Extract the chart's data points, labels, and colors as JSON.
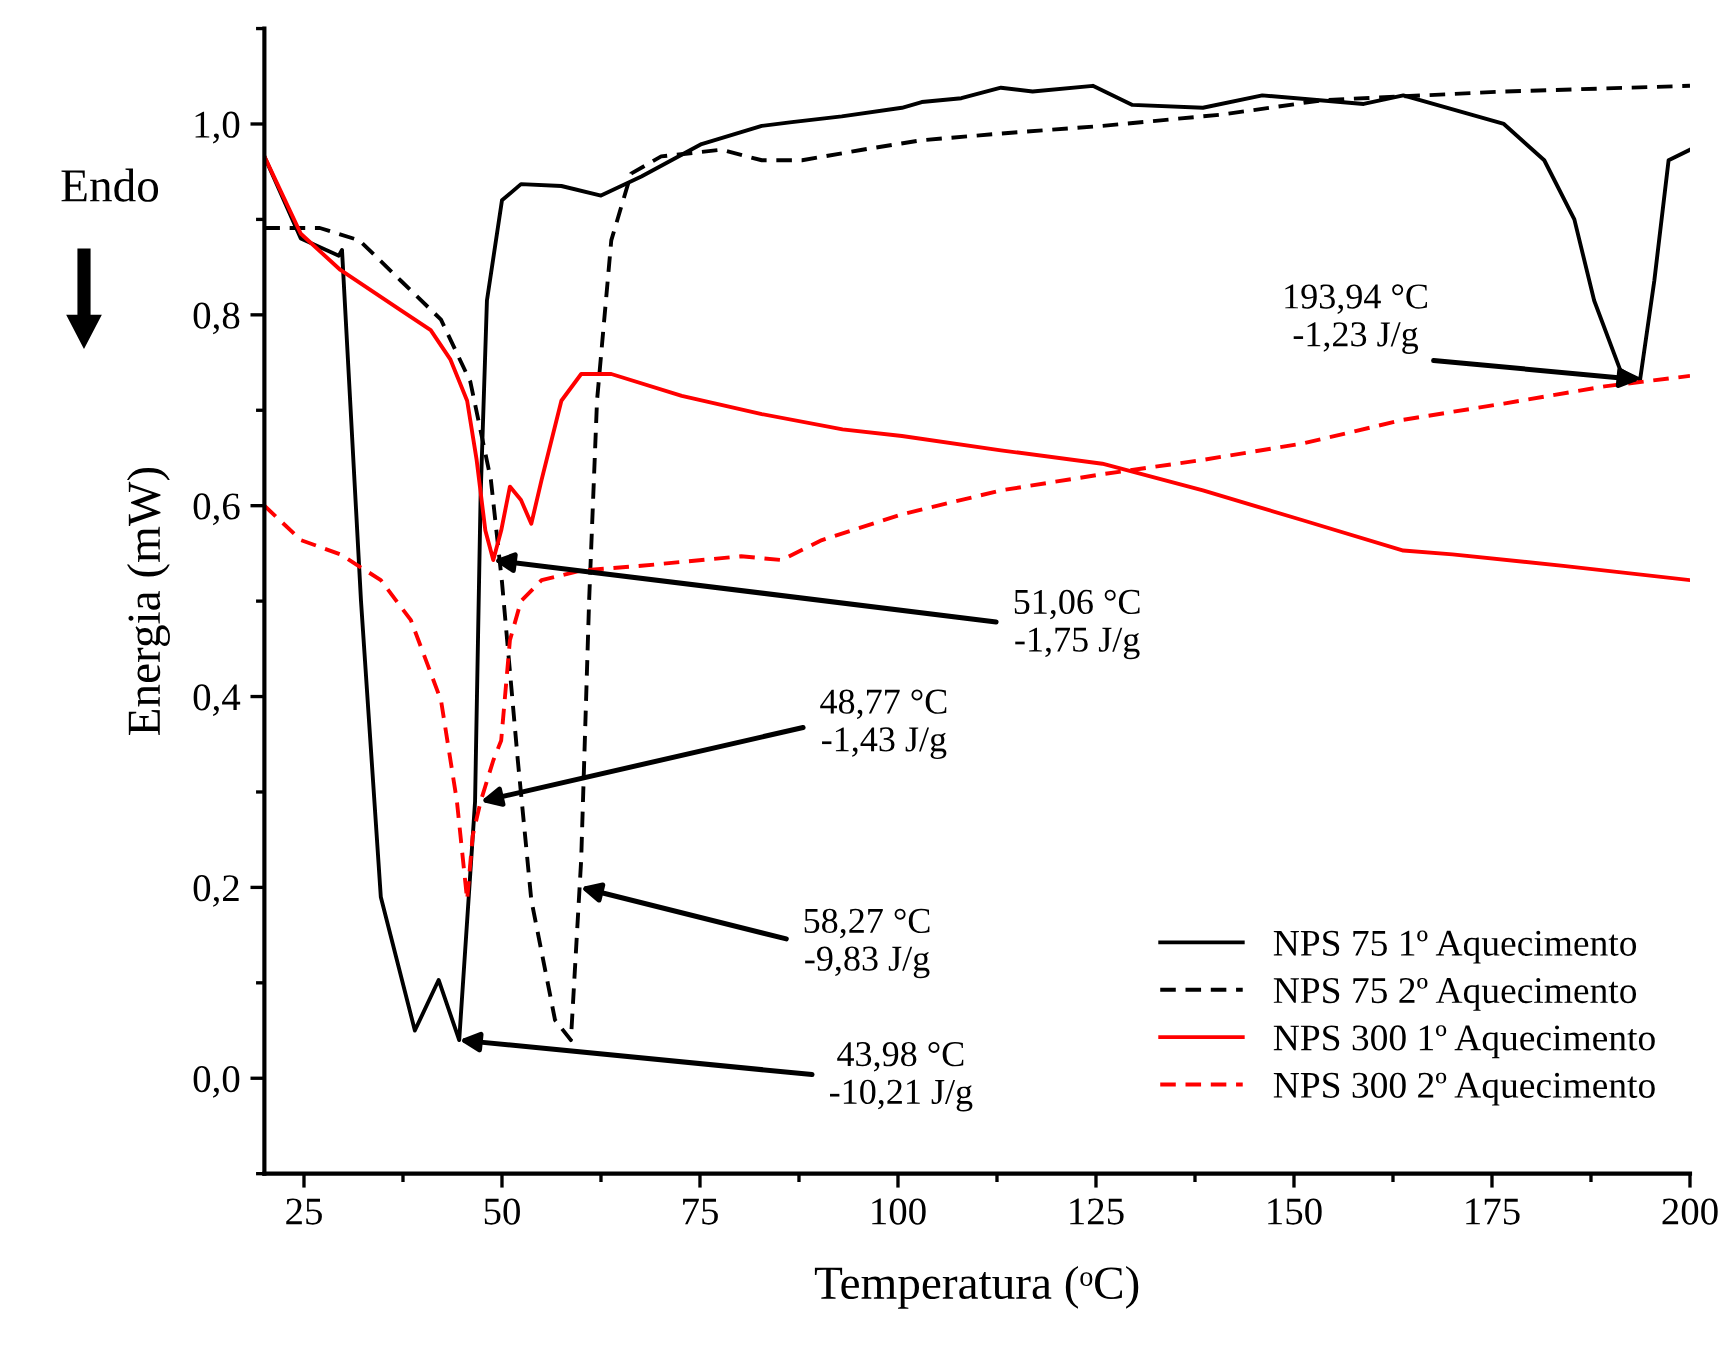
{
  "chart_data": {
    "type": "line",
    "xlabel": "Temperatura (ᵒC)",
    "ylabel": "Energia (mW)",
    "xlim": [
      20,
      200
    ],
    "xticks": [
      25,
      50,
      75,
      100,
      125,
      150,
      175,
      200
    ],
    "ylim": [
      -0.1,
      1.1
    ],
    "yticks": [
      {
        "value": 0,
        "label": "0,0"
      },
      {
        "value": 0.2,
        "label": "0,2"
      },
      {
        "value": 0.4,
        "label": "0,4"
      },
      {
        "value": 0.6,
        "label": "0,6"
      },
      {
        "value": 0.8,
        "label": "0,8"
      },
      {
        "value": 1.0,
        "label": "1,0"
      }
    ],
    "grid": false,
    "legend": "bottom right",
    "marker": "none",
    "series": [
      {
        "name": "NPS 75 1º Aquecimento",
        "color": "#000000",
        "line_style": "solid",
        "x": [
          20,
          24.6,
          29.4,
          29.8,
          32.2,
          34.7,
          39,
          42,
          44.6,
          46.6,
          47.3,
          48.1,
          50,
          52.4,
          57.5,
          62.5,
          67.6,
          75.2,
          82.8,
          86.6,
          92.9,
          100.5,
          103,
          108,
          113,
          117,
          124.6,
          129.6,
          138.5,
          146,
          158.8,
          163.8,
          176.5,
          181.6,
          185.4,
          187.9,
          191.2,
          193.7,
          195.5,
          197.3,
          200
        ],
        "values": [
          0.966,
          0.88,
          0.862,
          0.868,
          0.5,
          0.19,
          0.05,
          0.103,
          0.04,
          0.29,
          0.61,
          0.815,
          0.92,
          0.937,
          0.935,
          0.925,
          0.945,
          0.979,
          0.998,
          1.002,
          1.008,
          1.017,
          1.023,
          1.027,
          1.038,
          1.034,
          1.04,
          1.02,
          1.017,
          1.03,
          1.021,
          1.03,
          1.0,
          0.962,
          0.9,
          0.815,
          0.742,
          0.732,
          0.836,
          0.962,
          0.973
        ]
      },
      {
        "name": "NPS 75 2º Aquecimento",
        "color": "#000000",
        "line_style": "dashed",
        "x": [
          20,
          27,
          32,
          37.2,
          42.3,
          46,
          48.6,
          50,
          52,
          53.7,
          56.7,
          58.7,
          60,
          61,
          62,
          63.8,
          66.3,
          70.1,
          77.7,
          82.8,
          87.9,
          95.5,
          103,
          113,
          125.8,
          141,
          153.7,
          176.5,
          200
        ],
        "values": [
          0.891,
          0.891,
          0.878,
          0.836,
          0.795,
          0.73,
          0.627,
          0.52,
          0.333,
          0.187,
          0.061,
          0.04,
          0.229,
          0.5,
          0.71,
          0.878,
          0.948,
          0.966,
          0.973,
          0.962,
          0.962,
          0.973,
          0.983,
          0.99,
          0.998,
          1.01,
          1.025,
          1.034,
          1.04
        ]
      },
      {
        "name": "NPS 300 1º Aquecimento",
        "color": "#ff0000",
        "line_style": "solid",
        "x": [
          20,
          24.6,
          29.6,
          37.2,
          41,
          43.5,
          45.6,
          46.8,
          47.9,
          48.9,
          49.9,
          51,
          52.4,
          53.7,
          55,
          57.5,
          60,
          63.8,
          72.7,
          82.8,
          93,
          100.5,
          113,
          125.8,
          138.5,
          151,
          163.8,
          170,
          184,
          200
        ],
        "values": [
          0.966,
          0.885,
          0.847,
          0.805,
          0.784,
          0.753,
          0.71,
          0.648,
          0.574,
          0.543,
          0.574,
          0.62,
          0.606,
          0.581,
          0.627,
          0.71,
          0.738,
          0.738,
          0.715,
          0.696,
          0.68,
          0.673,
          0.658,
          0.644,
          0.616,
          0.585,
          0.553,
          0.549,
          0.537,
          0.522
        ]
      },
      {
        "name": "NPS 300 2º Aquecimento",
        "color": "#ff0000",
        "line_style": "dashed",
        "x": [
          20,
          24.6,
          29.6,
          34.7,
          38.5,
          42.3,
          44.3,
          45.6,
          46.3,
          47.3,
          48.9,
          49.9,
          51,
          52.4,
          55,
          60,
          67.6,
          80.2,
          85.3,
          90.4,
          100.5,
          113,
          125.8,
          138.5,
          151,
          163.8,
          176.5,
          189.2,
          200
        ],
        "values": [
          0.6,
          0.564,
          0.549,
          0.522,
          0.48,
          0.396,
          0.291,
          0.187,
          0.254,
          0.29,
          0.333,
          0.354,
          0.459,
          0.5,
          0.522,
          0.532,
          0.537,
          0.547,
          0.543,
          0.564,
          0.591,
          0.616,
          0.633,
          0.648,
          0.665,
          0.69,
          0.707,
          0.725,
          0.736
        ]
      }
    ],
    "annotations": [
      {
        "text": "51,06 °C\n-1,75 J/g",
        "x": 48.9,
        "y": 0.543
      },
      {
        "text": "48,77 °C\n-1,43 J/g",
        "x": 47.3,
        "y": 0.29
      },
      {
        "text": "58,27 °C\n-9,83 J/g",
        "x": 59.9,
        "y": 0.2
      },
      {
        "text": "43,98 °C\n-10,21 J/g",
        "x": 44.6,
        "y": 0.04
      },
      {
        "text": "193,94 °C\n-1,23 J/g",
        "x": 193.7,
        "y": 0.732
      },
      "Endo"
    ]
  }
}
